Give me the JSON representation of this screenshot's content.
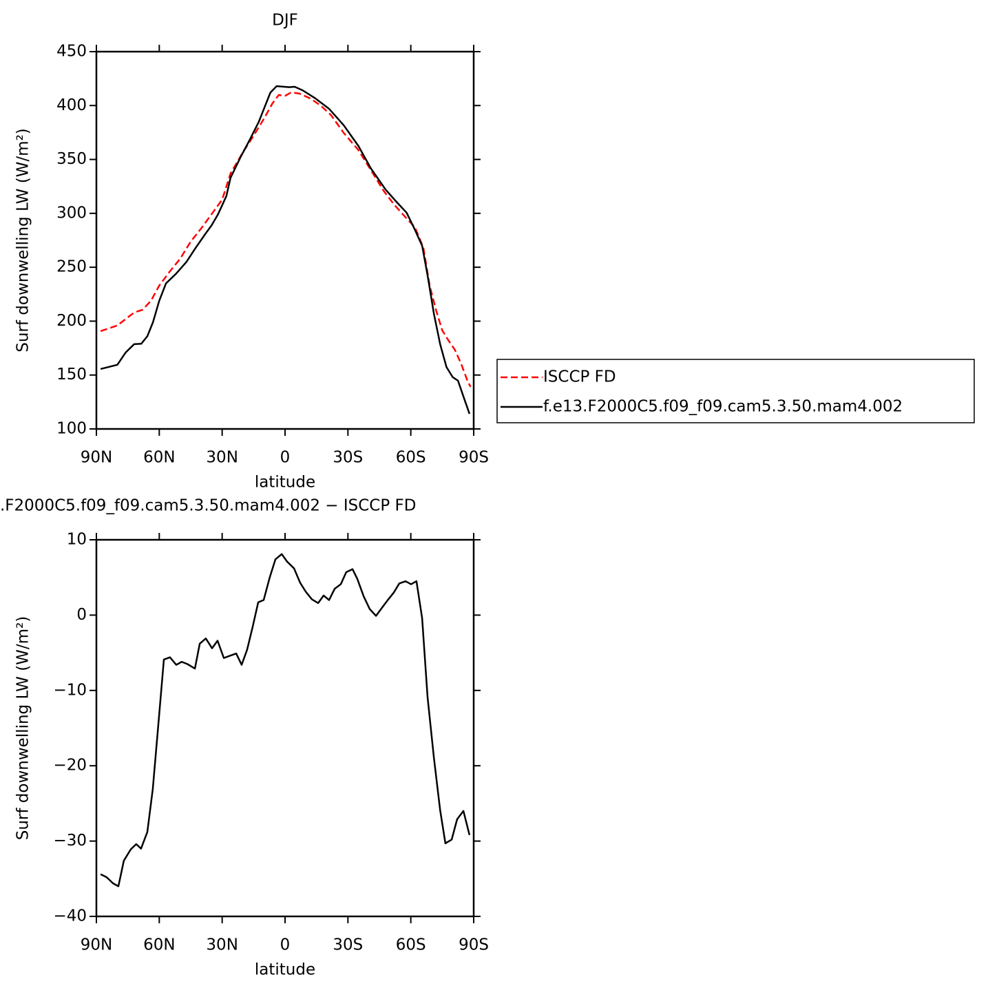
{
  "chart_data": [
    {
      "type": "line",
      "title": "DJF",
      "xlabel": "latitude",
      "ylabel": "Surf downwelling LW (W/m²)",
      "xlim": [
        90,
        -90
      ],
      "xticks": [
        {
          "value": 90,
          "label": "90N"
        },
        {
          "value": 60,
          "label": "60N"
        },
        {
          "value": 30,
          "label": "30N"
        },
        0,
        {
          "value": -30,
          "label": "30S"
        },
        {
          "value": -60,
          "label": "60S"
        },
        {
          "value": -90,
          "label": "90S"
        }
      ],
      "ylim": [
        100,
        450
      ],
      "yticks": [
        100,
        150,
        200,
        250,
        300,
        350,
        400,
        450
      ],
      "legend": "right",
      "series": [
        {
          "name": "ISCCP FD",
          "color": "#ff0000",
          "linestyle": "dashed",
          "x": [
            88,
            80,
            72,
            68,
            64,
            60,
            55,
            50,
            45,
            40,
            35,
            30,
            26,
            20,
            15,
            10,
            6,
            3,
            0,
            -3,
            -7,
            -12,
            -17,
            -22,
            -28,
            -35,
            -41,
            -47,
            -52,
            -57,
            -62,
            -66,
            -69,
            -72,
            -75,
            -78,
            -81,
            -84,
            -87,
            -88.5
          ],
          "values": [
            190.7,
            196,
            208,
            210.5,
            218.8,
            233,
            246,
            258,
            273.8,
            286,
            299.3,
            312.7,
            337,
            357,
            372,
            388,
            402,
            409.8,
            409,
            412.3,
            411,
            406.6,
            400,
            391,
            374.6,
            358.7,
            340,
            321,
            308.2,
            297.4,
            287,
            268,
            233,
            210.5,
            191.4,
            182,
            173.5,
            160.6,
            144.8,
            139
          ]
        },
        {
          "name": "f.e13.F2000C5.f09_f09.cam5.3.50.mam4.002",
          "color": "#000000",
          "linestyle": "solid",
          "x": [
            88,
            80,
            76,
            72,
            68.6,
            65.7,
            63,
            60,
            56.8,
            52,
            47,
            43,
            38,
            35,
            32,
            28,
            26,
            21,
            17,
            12.5,
            7,
            4,
            -2,
            -4.6,
            -8.5,
            -14.5,
            -21,
            -28,
            -35,
            -41,
            -48,
            -53,
            -58,
            -62,
            -65.4,
            -68,
            -71,
            -74,
            -77,
            -80,
            -82.5,
            -85,
            -88
          ],
          "values": [
            155.6,
            159.5,
            171,
            178.6,
            179,
            186,
            199,
            219,
            235,
            244,
            255,
            267,
            281,
            289,
            299,
            316,
            333,
            353,
            367.6,
            385,
            412,
            418,
            417,
            417.4,
            414,
            406.6,
            397,
            381.7,
            362.5,
            341.5,
            322,
            311,
            300.6,
            284.6,
            270,
            242.5,
            207,
            178.6,
            157.5,
            148,
            144.8,
            130.7,
            114
          ]
        }
      ]
    },
    {
      "type": "line",
      "title": ".F2000C5.f09_f09.cam5.3.50.mam4.002 − ISCCP FD",
      "xlabel": "latitude",
      "ylabel": "Surf downwelling LW (W/m²)",
      "xlim": [
        90,
        -90
      ],
      "xticks": [
        {
          "value": 90,
          "label": "90N"
        },
        {
          "value": 60,
          "label": "60N"
        },
        {
          "value": 30,
          "label": "30N"
        },
        0,
        {
          "value": -30,
          "label": "30S"
        },
        {
          "value": -60,
          "label": "60S"
        },
        {
          "value": -90,
          "label": "90S"
        }
      ],
      "ylim": [
        -40,
        10
      ],
      "yticks": [
        {
          "value": -40,
          "label": "−40"
        },
        {
          "value": -30,
          "label": "−30"
        },
        {
          "value": -20,
          "label": "−20"
        },
        {
          "value": -10,
          "label": "−10"
        },
        0,
        10
      ],
      "series": [
        {
          "color": "#000000",
          "linestyle": "solid",
          "x": [
            88,
            85.1,
            82.1,
            79.5,
            76.9,
            73.6,
            71,
            68.7,
            65.7,
            63.1,
            60.1,
            57.8,
            54.9,
            51.9,
            49.3,
            46.6,
            43,
            40.7,
            37.8,
            34.8,
            32.2,
            29.2,
            26.3,
            23.3,
            20.7,
            18.1,
            15.4,
            12.8,
            10.2,
            7.2,
            4.6,
            1.6,
            -1,
            -4.3,
            -7.2,
            -9.9,
            -12.8,
            -15.8,
            -18.4,
            -21,
            -23.7,
            -26.6,
            -29.2,
            -32.2,
            -34.5,
            -37.5,
            -40.4,
            -43.4,
            -46.3,
            -49.3,
            -51.9,
            -54.5,
            -57.5,
            -60.1,
            -62.7,
            -65.4,
            -68,
            -71,
            -74,
            -76.5,
            -79.5,
            -82.1,
            -85.1,
            -88
          ],
          "values": [
            -34.4,
            -34.8,
            -35.6,
            -36,
            -32.6,
            -31.1,
            -30.4,
            -31,
            -28.8,
            -23.1,
            -13.4,
            -5.9,
            -5.6,
            -6.6,
            -6.2,
            -6.5,
            -7.1,
            -3.8,
            -3.1,
            -4.4,
            -3.4,
            -5.7,
            -5.4,
            -5.1,
            -6.6,
            -4.6,
            -1.5,
            1.7,
            2.0,
            5.1,
            7.4,
            8.1,
            7.1,
            6.2,
            4.3,
            3.1,
            2.1,
            1.6,
            2.6,
            2.0,
            3.5,
            4.1,
            5.7,
            6.1,
            4.8,
            2.5,
            0.8,
            -0.1,
            1.0,
            2.1,
            3.0,
            4.2,
            4.5,
            4.1,
            4.5,
            -0.4,
            -10.9,
            -18.9,
            -25.9,
            -30.3,
            -29.8,
            -27.1,
            -26.0,
            -29.2
          ]
        }
      ]
    }
  ]
}
